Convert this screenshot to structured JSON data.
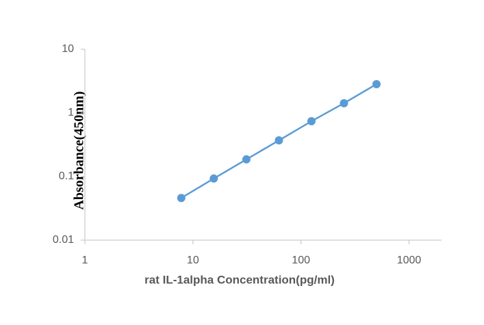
{
  "chart_data": {
    "type": "line",
    "x_label": "rat IL-1alpha Concentration(pg/ml)",
    "y_label": "Absorbance(450nm)",
    "x_log": true,
    "y_log": true,
    "series": [
      {
        "color": "#5b9bd5",
        "x": [
          7.8,
          15.6,
          31.25,
          62.5,
          125,
          250,
          500
        ],
        "values": [
          0.046,
          0.093,
          0.186,
          0.37,
          0.74,
          1.42,
          2.83
        ]
      }
    ],
    "xlim": [
      1,
      2000
    ],
    "xticks": [
      1,
      10,
      100,
      1000
    ],
    "ylim": [
      0.01,
      10
    ],
    "yticks": [
      10,
      1,
      0.1,
      0.01
    ],
    "grid": false
  }
}
